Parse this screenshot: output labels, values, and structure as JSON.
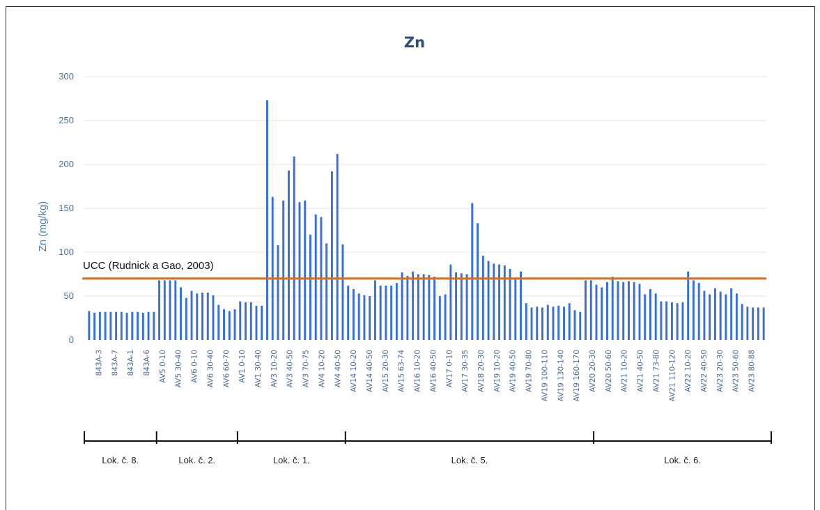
{
  "chart_data": {
    "type": "bar",
    "title": "Zn",
    "ylabel": "Zn (mg/kg)",
    "xlabel": "",
    "ylim": [
      0,
      300
    ],
    "yticks": [
      "0",
      "50",
      "100",
      "150",
      "200",
      "250",
      "300"
    ],
    "grid": true,
    "colors": {
      "bar": "#3a6fd8",
      "reference": "#d0702c",
      "grid": "#e4e4e4"
    },
    "reference_line": {
      "label": "UCC (Rudnick a Gao, 2003)",
      "value": 70
    },
    "tick_labels": [
      "843A-3",
      "843A-7",
      "843A-1",
      "843A-6",
      "AV5 0-10",
      "AV5 30-40",
      "AV6 0-10",
      "AV6 30-40",
      "AV6 60-70",
      "AV1 0-10",
      "AV1 30-40",
      "AV3 10-20",
      "AV3 40-50",
      "AV3 70-75",
      "AV4 10-20",
      "AV4 40-50",
      "AV14 10-20",
      "AV14 40-50",
      "AV15 20-30",
      "AV15 63-74",
      "AV16 10-20",
      "AV16 40-50",
      "AV17 0-10",
      "AV17 30-35",
      "AV18 20-30",
      "AV19 10-20",
      "AV19 40-50",
      "AV19 70-80",
      "AV19 100-110",
      "AV19 130-140",
      "AV19 160-170",
      "AV20 20-30",
      "AV20 50-60",
      "AV21 10-20",
      "AV21 40-50",
      "AV21 73-80",
      "AV21 110-120",
      "AV22 10-20",
      "AV22 40-50",
      "AV23 20-30",
      "AV23 50-60",
      "AV23 80-88"
    ],
    "values": [
      33,
      31,
      32,
      32,
      32,
      32,
      32,
      31,
      32,
      32,
      31,
      32,
      32,
      68,
      68,
      68,
      68,
      60,
      48,
      56,
      53,
      54,
      54,
      51,
      40,
      35,
      33,
      35,
      44,
      43,
      43,
      39,
      39,
      273,
      163,
      108,
      159,
      193,
      209,
      157,
      159,
      120,
      143,
      140,
      110,
      192,
      212,
      109,
      62,
      58,
      53,
      51,
      50,
      68,
      62,
      62,
      62,
      65,
      77,
      73,
      78,
      75,
      75,
      74,
      72,
      50,
      52,
      86,
      77,
      76,
      75,
      156,
      133,
      96,
      90,
      87,
      86,
      85,
      81,
      70,
      78,
      42,
      37,
      38,
      37,
      40,
      38,
      39,
      38,
      42,
      34,
      32,
      68,
      68,
      63,
      60,
      66,
      72,
      67,
      66,
      67,
      66,
      64,
      52,
      58,
      53,
      44,
      44,
      43,
      42,
      43,
      78,
      68,
      65,
      56,
      52,
      59,
      55,
      52,
      59,
      53,
      41,
      38,
      37,
      37,
      37
    ],
    "groups": [
      {
        "label": "Lok. č. 8.",
        "count": 13
      },
      {
        "label": "Lok. č. 2.",
        "count": 15
      },
      {
        "label": "Lok. č. 1.",
        "count": 20
      },
      {
        "label": "Lok. č. 5.",
        "count": 46
      },
      {
        "label": "Lok. č. 6.",
        "count": 34
      }
    ]
  }
}
